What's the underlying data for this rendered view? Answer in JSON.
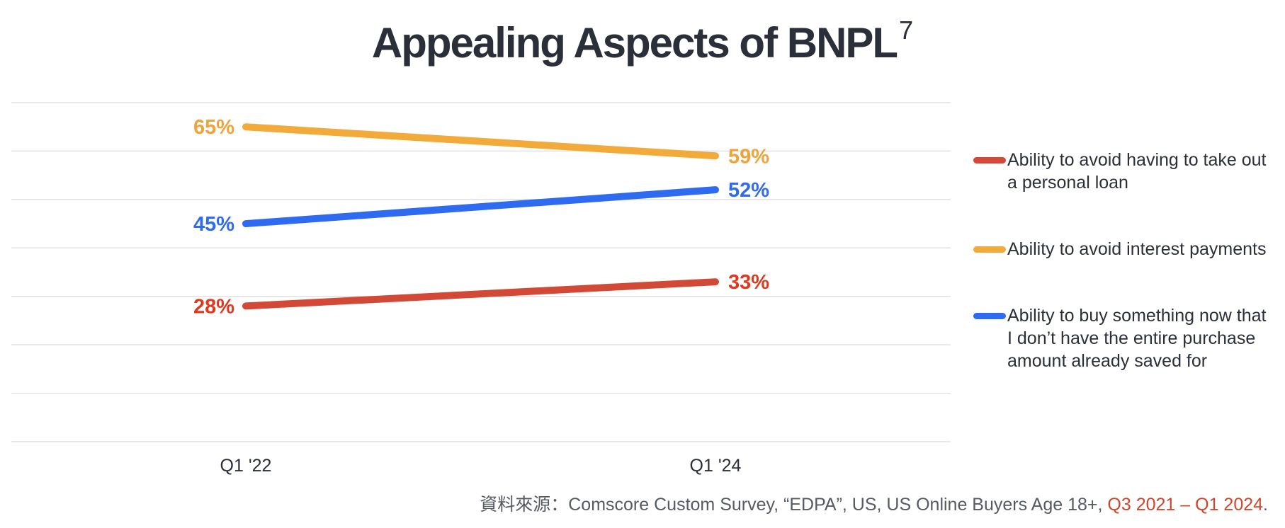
{
  "title": "Appealing Aspects of BNPL",
  "title_superscript": "7",
  "source": {
    "prefix": "資料來源：Comscore Custom Survey, “EDPA”, US, US Online Buyers Age 18+, ",
    "period": "Q3 2021 – Q1 2024",
    "suffix": "."
  },
  "chart_data": {
    "type": "line",
    "title": "Appealing Aspects of BNPL",
    "xlabel": "",
    "ylabel": "",
    "categories": [
      "Q1 '22",
      "Q1 '24"
    ],
    "ylim": [
      0,
      70
    ],
    "grid": true,
    "legend_position": "right",
    "series": [
      {
        "name": "Ability to avoid having to take out a personal loan",
        "values": [
          28,
          33
        ],
        "labels": [
          "28%",
          "33%"
        ],
        "color": "#d24a37",
        "label_color": "#e0381e"
      },
      {
        "name": "Ability to avoid interest payments",
        "values": [
          65,
          59
        ],
        "labels": [
          "65%",
          "59%"
        ],
        "color": "#f2aa3a",
        "label_color": "#f0a33a"
      },
      {
        "name": "Ability to buy something now that I don’t have the entire purchase amount already saved for",
        "values": [
          45,
          52
        ],
        "labels": [
          "45%",
          "52%"
        ],
        "color": "#2f6bf0",
        "label_color": "#2f6bf0"
      }
    ]
  }
}
